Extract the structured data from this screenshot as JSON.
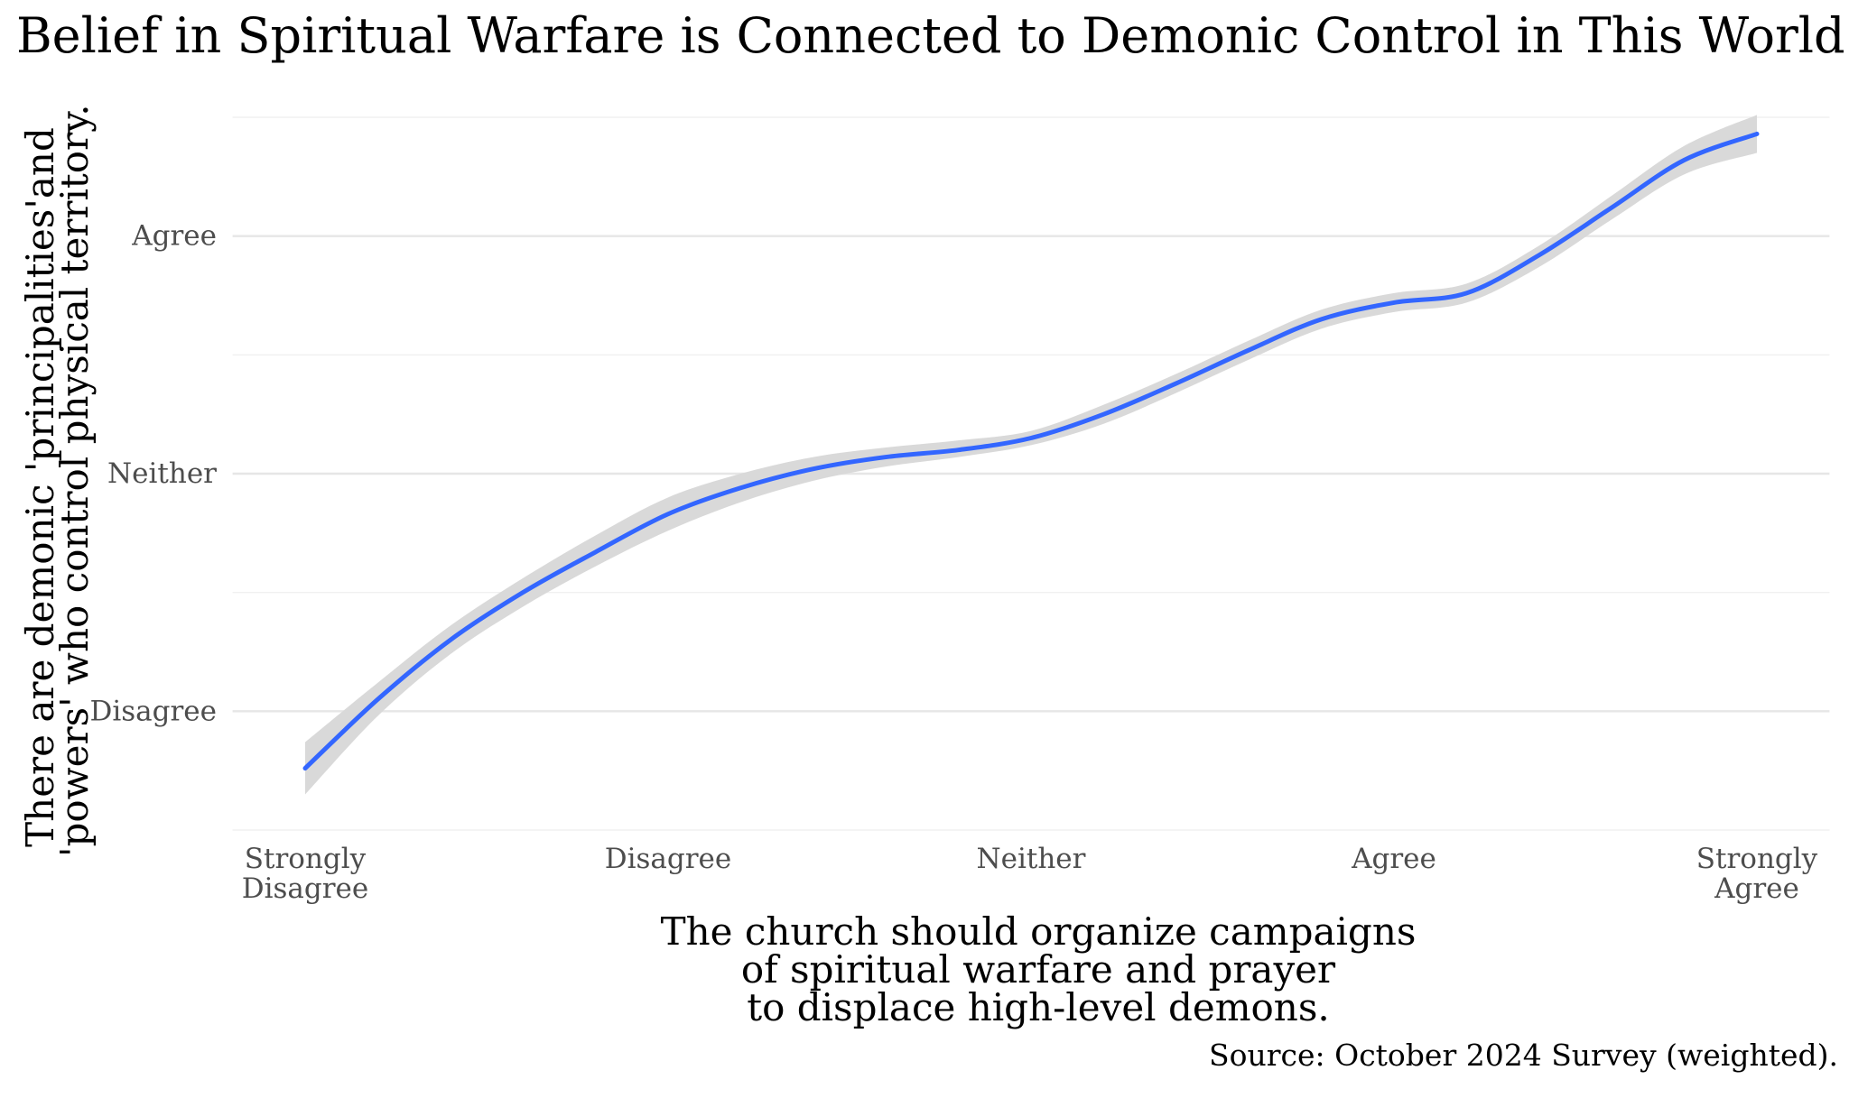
{
  "chart_data": {
    "type": "line",
    "title": "Belief in Spiritual Warfare is Connected to Demonic Control in This World",
    "xlabel_lines": [
      "The church should organize campaigns",
      "of spiritual warfare and prayer",
      "to displace high-level demons."
    ],
    "ylabel_lines": [
      "There are demonic 'principalities'and",
      "'powers' who control physical territory."
    ],
    "caption": "Source: October 2024 Survey (weighted).",
    "x_ticks": [
      {
        "value": 1,
        "lines": [
          "Strongly",
          "Disagree"
        ]
      },
      {
        "value": 2,
        "lines": [
          "Disagree"
        ]
      },
      {
        "value": 3,
        "lines": [
          "Neither"
        ]
      },
      {
        "value": 4,
        "lines": [
          "Agree"
        ]
      },
      {
        "value": 5,
        "lines": [
          "Strongly",
          "Agree"
        ]
      }
    ],
    "y_ticks": [
      {
        "value": 2,
        "label": "Disagree"
      },
      {
        "value": 3,
        "label": "Neither"
      },
      {
        "value": 4,
        "label": "Agree"
      }
    ],
    "xlim": [
      0.8,
      5.2
    ],
    "ylim": [
      1.5,
      4.5
    ],
    "grid": true,
    "series": [
      {
        "name": "smooth",
        "color": "#3366ff",
        "ribbon_color": "#d9d9d9",
        "x": [
          1.0,
          1.2,
          1.4,
          1.6,
          1.8,
          2.0,
          2.2,
          2.4,
          2.6,
          2.8,
          3.0,
          3.2,
          3.4,
          3.6,
          3.8,
          4.0,
          4.2,
          4.4,
          4.6,
          4.8,
          5.0
        ],
        "y": [
          1.76,
          2.05,
          2.3,
          2.5,
          2.67,
          2.83,
          2.94,
          3.02,
          3.07,
          3.1,
          3.15,
          3.25,
          3.38,
          3.52,
          3.65,
          3.72,
          3.76,
          3.92,
          4.12,
          4.32,
          4.43
        ],
        "lower": [
          1.65,
          1.98,
          2.24,
          2.44,
          2.61,
          2.76,
          2.88,
          2.97,
          3.03,
          3.07,
          3.12,
          3.21,
          3.34,
          3.48,
          3.61,
          3.68,
          3.72,
          3.87,
          4.07,
          4.26,
          4.35
        ],
        "upper": [
          1.87,
          2.12,
          2.36,
          2.56,
          2.74,
          2.9,
          3.0,
          3.07,
          3.11,
          3.14,
          3.18,
          3.29,
          3.42,
          3.56,
          3.69,
          3.76,
          3.8,
          3.96,
          4.17,
          4.38,
          4.51
        ]
      }
    ]
  }
}
